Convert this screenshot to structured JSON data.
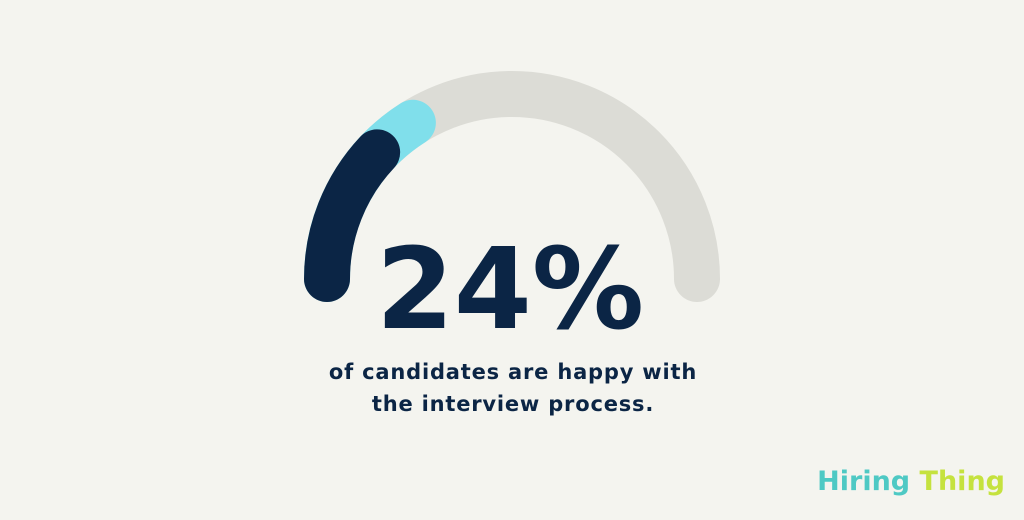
{
  "chart_data": {
    "type": "gauge",
    "ylim": [
      0,
      100
    ],
    "track_color": "#dcdcd6",
    "series": [
      {
        "color": "#80dfeb",
        "values": [
          32
        ]
      },
      {
        "color": "#0b2545",
        "values": [
          24
        ],
        "value_labels": [
          "24%"
        ]
      }
    ],
    "caption": [
      "of candidates are happy with",
      "the interview process."
    ]
  },
  "logo": {
    "first": "Hiring",
    "second": "Thing"
  }
}
